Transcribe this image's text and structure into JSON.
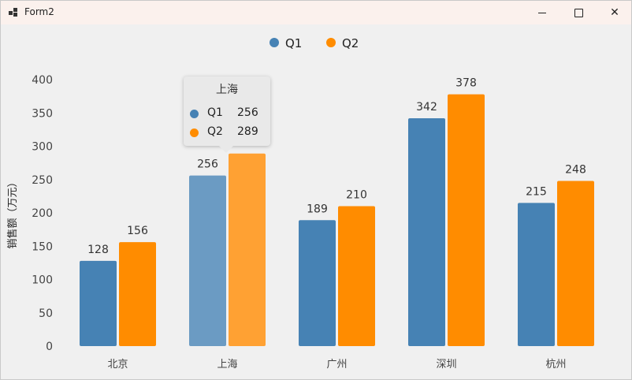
{
  "window": {
    "title": "Form2",
    "buttons": {
      "minimize": "minimize-icon",
      "maximize": "maximize-icon",
      "close": "close-icon"
    }
  },
  "colors": {
    "q1": "#4682b4",
    "q2": "#ff8c00",
    "q1_hover": "#6b9bc3",
    "q2_hover": "#ffa133"
  },
  "chart_data": {
    "type": "bar",
    "categories": [
      "北京",
      "上海",
      "广州",
      "深圳",
      "杭州"
    ],
    "series": [
      {
        "name": "Q1",
        "values": [
          128,
          256,
          189,
          342,
          215
        ]
      },
      {
        "name": "Q2",
        "values": [
          156,
          289,
          210,
          378,
          248
        ]
      }
    ],
    "ylabel": "销售额（万元）",
    "xlabel": "",
    "ylim": [
      0,
      400
    ],
    "yticks": [
      0,
      50,
      100,
      150,
      200,
      250,
      300,
      350,
      400
    ],
    "legend": {
      "position": "top-center",
      "items": [
        "Q1",
        "Q2"
      ]
    },
    "grid": false,
    "highlighted_category_index": 1
  },
  "tooltip": {
    "title": "上海",
    "rows": [
      {
        "name": "Q1",
        "value": "256"
      },
      {
        "name": "Q2",
        "value": "289"
      }
    ]
  }
}
